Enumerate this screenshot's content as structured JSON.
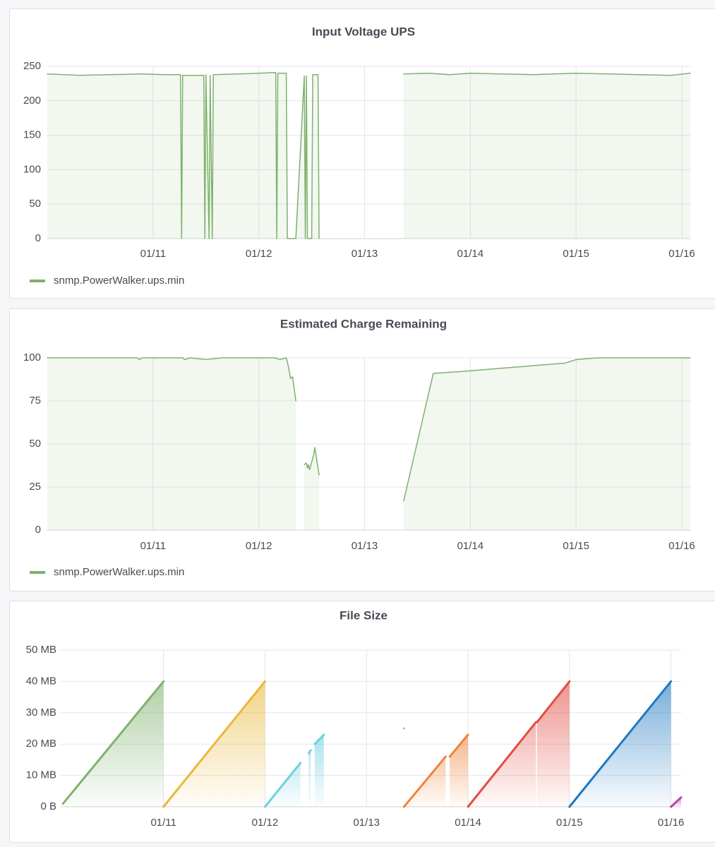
{
  "chart_data": [
    {
      "type": "line",
      "title": "Input Voltage UPS",
      "area_fill": "solid",
      "grid": true,
      "legend": "bottom-left",
      "xlim": [
        10.0,
        16.08
      ],
      "xticks": [
        {
          "value": 11,
          "label": "01/11"
        },
        {
          "value": 12,
          "label": "01/12"
        },
        {
          "value": 13,
          "label": "01/13"
        },
        {
          "value": 14,
          "label": "01/14"
        },
        {
          "value": 15,
          "label": "01/15"
        },
        {
          "value": 16,
          "label": "01/16"
        }
      ],
      "ylim": [
        0,
        250
      ],
      "yticks": [
        0,
        50,
        100,
        150,
        200,
        250
      ],
      "series": [
        {
          "name": "snmp.PowerWalker.ups.min",
          "color": "#7eb26d",
          "x": [
            10.0,
            10.3,
            10.6,
            10.9,
            11.1,
            11.26,
            11.27,
            11.28,
            11.48,
            11.49,
            11.5,
            11.53,
            11.54,
            11.56,
            11.57,
            11.8,
            12.0,
            12.16,
            12.17,
            12.18,
            12.26,
            12.27,
            12.35,
            12.43,
            12.44,
            12.45,
            12.46,
            12.5,
            12.51,
            12.56,
            12.57,
            null,
            13.37,
            13.6,
            13.8,
            14.0,
            14.3,
            14.6,
            15.0,
            15.3,
            15.6,
            15.9,
            16.08
          ],
          "values": [
            239,
            237,
            238,
            239,
            238,
            238,
            0,
            237,
            237,
            0,
            238,
            0,
            237,
            0,
            238,
            239,
            240,
            241,
            0,
            240,
            240,
            0,
            0,
            236,
            0,
            236,
            0,
            0,
            238,
            238,
            0,
            null,
            239,
            240,
            238,
            240,
            239,
            238,
            240,
            239,
            238,
            237,
            240
          ]
        }
      ]
    },
    {
      "type": "line",
      "title": "Estimated Charge Remaining",
      "area_fill": "solid",
      "grid": true,
      "legend": "bottom-left",
      "xlim": [
        10.0,
        16.08
      ],
      "xticks": [
        {
          "value": 11,
          "label": "01/11"
        },
        {
          "value": 12,
          "label": "01/12"
        },
        {
          "value": 13,
          "label": "01/13"
        },
        {
          "value": 14,
          "label": "01/14"
        },
        {
          "value": 15,
          "label": "01/15"
        },
        {
          "value": 16,
          "label": "01/16"
        }
      ],
      "ylim": [
        0,
        100
      ],
      "yticks": [
        0,
        25,
        50,
        75,
        100
      ],
      "series": [
        {
          "name": "snmp.PowerWalker.ups.min",
          "color": "#7eb26d",
          "x": [
            10.0,
            10.85,
            10.87,
            10.9,
            11.28,
            11.3,
            11.35,
            11.5,
            11.65,
            12.15,
            12.2,
            12.26,
            12.28,
            12.3,
            12.32,
            12.35,
            null,
            12.43,
            12.45,
            12.46,
            12.47,
            12.48,
            12.52,
            12.53,
            12.57,
            null,
            13.37,
            13.65,
            13.9,
            14.1,
            14.3,
            14.5,
            14.7,
            14.9,
            15.0,
            15.2,
            16.08
          ],
          "values": [
            100,
            100,
            99,
            100,
            100,
            99,
            100,
            99,
            100,
            100,
            99,
            100,
            95,
            88,
            89,
            75,
            null,
            38,
            39,
            36,
            38,
            35,
            44,
            48,
            32,
            null,
            17,
            91,
            92,
            93,
            94,
            95,
            96,
            97,
            99,
            100,
            100
          ]
        }
      ]
    },
    {
      "type": "line",
      "title": "File Size",
      "area_fill": "gradient",
      "grid": true,
      "xlim": [
        9.98,
        16.1
      ],
      "xticks": [
        {
          "value": 11,
          "label": "01/11"
        },
        {
          "value": 12,
          "label": "01/12"
        },
        {
          "value": 13,
          "label": "01/13"
        },
        {
          "value": 14,
          "label": "01/14"
        },
        {
          "value": 15,
          "label": "01/15"
        },
        {
          "value": 16,
          "label": "01/16"
        }
      ],
      "ylim": [
        0,
        50
      ],
      "yticks": [
        {
          "value": 0,
          "label": "0 B"
        },
        {
          "value": 10,
          "label": "10 MB"
        },
        {
          "value": 20,
          "label": "20 MB"
        },
        {
          "value": 30,
          "label": "30 MB"
        },
        {
          "value": 40,
          "label": "40 MB"
        },
        {
          "value": 50,
          "label": "50 MB"
        }
      ],
      "series": [
        {
          "color": "#7eb26d",
          "x": [
            10.01,
            11.0
          ],
          "values": [
            1,
            40
          ]
        },
        {
          "color": "#eab839",
          "x": [
            11.0,
            12.0
          ],
          "values": [
            0,
            40
          ]
        },
        {
          "color": "#6ed0e0",
          "x": [
            12.0,
            12.35,
            null,
            12.43,
            12.45,
            null,
            12.49,
            12.58,
            null,
            13.37
          ],
          "values": [
            0,
            14,
            null,
            17,
            18,
            null,
            20,
            23,
            null,
            25
          ]
        },
        {
          "color": "#ef843c",
          "x": [
            13.37,
            13.78,
            null,
            13.82,
            14.0
          ],
          "values": [
            0,
            16,
            null,
            16,
            23
          ]
        },
        {
          "color": "#e24d42",
          "x": [
            14.0,
            14.67,
            null,
            14.68,
            15.0
          ],
          "values": [
            0,
            27,
            null,
            27,
            40
          ]
        },
        {
          "color": "#1f78c1",
          "x": [
            15.0,
            16.0
          ],
          "values": [
            0,
            40
          ]
        },
        {
          "color": "#ba43a9",
          "x": [
            16.0,
            16.1
          ],
          "values": [
            0,
            3
          ]
        }
      ]
    }
  ]
}
